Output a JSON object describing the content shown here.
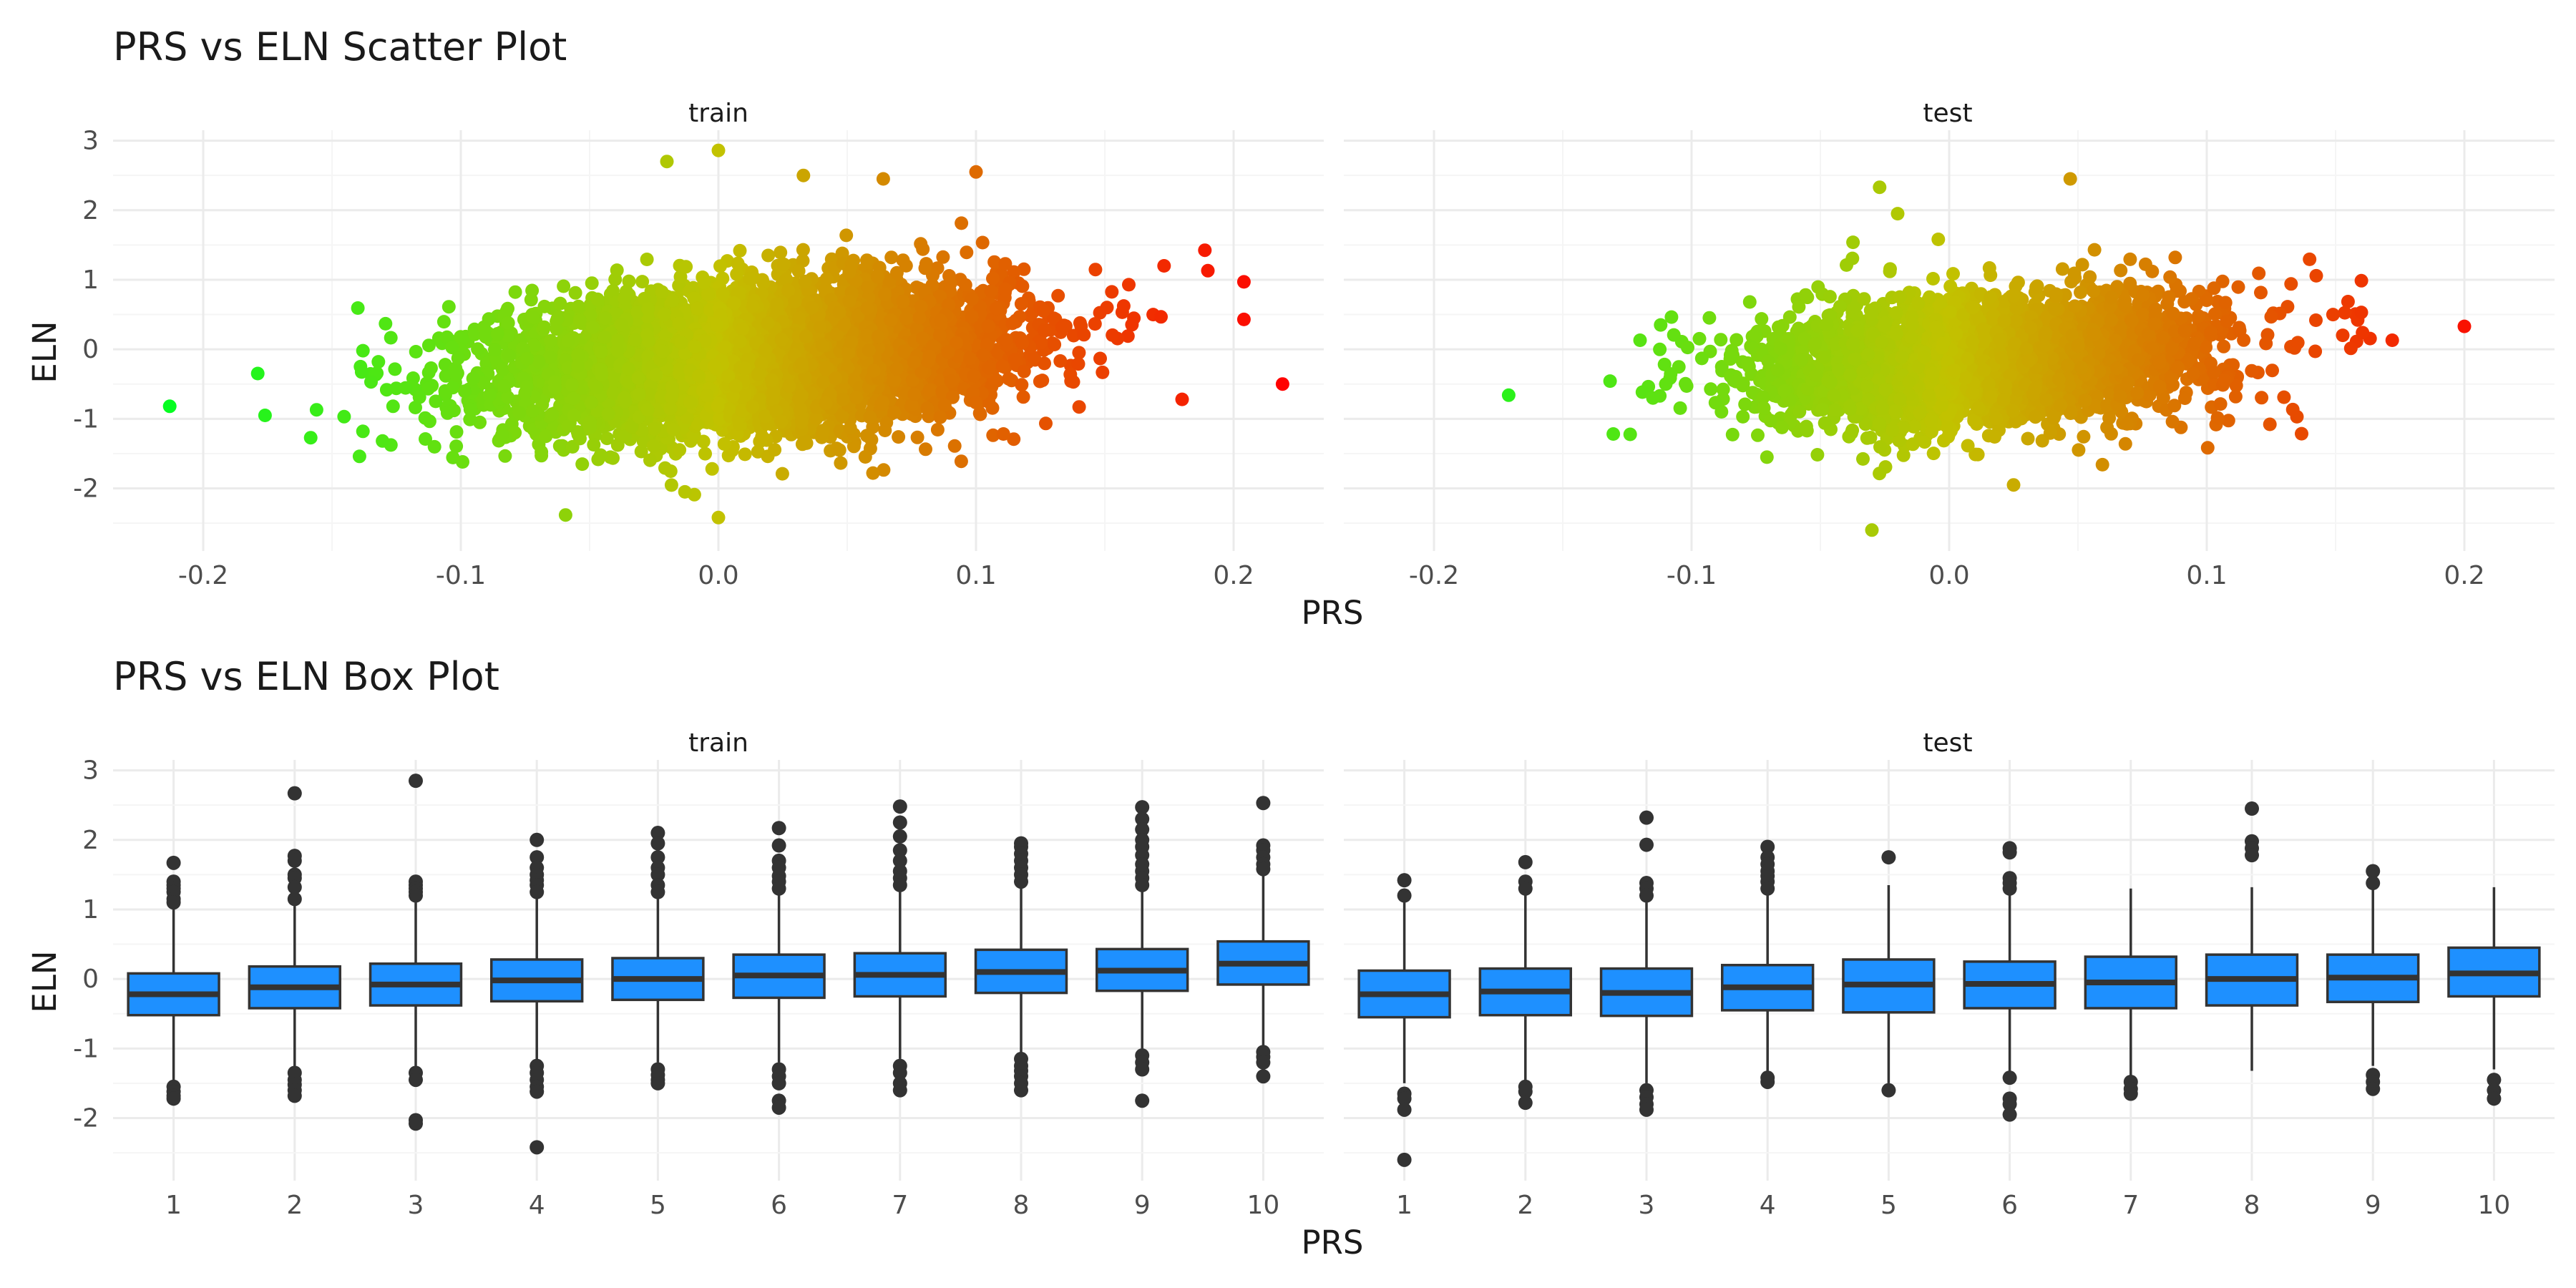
{
  "colors": {
    "grid_major": "#ebebeb",
    "grid_minor": "#f5f5f5",
    "box_fill": "#1E90FF",
    "box_line": "#333333",
    "point_low": "#00ff22",
    "point_mid": "#c2c200",
    "point_high": "#ff0000"
  },
  "chart_data": [
    {
      "type": "scatter",
      "title": "PRS vs ELN Scatter Plot",
      "xlabel": "PRS",
      "ylabel": "ELN",
      "xlim": [
        -0.235,
        0.235
      ],
      "ylim": [
        -2.9,
        3.15
      ],
      "xticks": [
        -0.2,
        -0.1,
        0.0,
        0.1,
        0.2
      ],
      "xtick_labels": [
        "-0.2",
        "-0.1",
        "0.0",
        "0.1",
        "0.2"
      ],
      "yticks": [
        -2,
        -1,
        0,
        1,
        2,
        3
      ],
      "ytick_labels": [
        "-2",
        "-1",
        "0",
        "1",
        "2",
        "3"
      ],
      "grid": true,
      "color_by": "x",
      "color_scale": [
        "#00ff22",
        "#c2c200",
        "#ff0000"
      ],
      "color_range": [
        -0.22,
        0.22
      ],
      "panels": [
        {
          "name": "train",
          "bulk": {
            "x_mean": 0.015,
            "x_sd": 0.048,
            "y_mean": -0.1,
            "y_sd": 0.5,
            "slope": 2.5,
            "n": 5500
          },
          "outliers": [
            [
              -0.213,
              -0.82
            ],
            [
              -0.176,
              -0.95
            ],
            [
              -0.156,
              -0.87
            ],
            [
              -0.138,
              -1.18
            ],
            [
              -0.138,
              -0.02
            ],
            [
              -0.132,
              -0.18
            ],
            [
              0.219,
              -0.5
            ],
            [
              0.204,
              0.97
            ],
            [
              0.204,
              0.43
            ],
            [
              0.19,
              1.13
            ],
            [
              0.18,
              -0.72
            ],
            [
              0.173,
              1.2
            ],
            [
              0.0,
              2.86
            ],
            [
              -0.02,
              2.7
            ],
            [
              0.033,
              2.5
            ],
            [
              0.1,
              2.55
            ],
            [
              0.064,
              2.45
            ],
            [
              0.0,
              -2.42
            ],
            [
              -0.013,
              -2.05
            ],
            [
              0.06,
              -1.78
            ]
          ]
        },
        {
          "name": "test",
          "bulk": {
            "x_mean": 0.015,
            "x_sd": 0.045,
            "y_mean": -0.15,
            "y_sd": 0.47,
            "slope": 2.3,
            "n": 2800
          },
          "outliers": [
            [
              -0.171,
              -0.66
            ],
            [
              -0.12,
              0.13
            ],
            [
              -0.112,
              0.35
            ],
            [
              -0.11,
              -0.5
            ],
            [
              -0.115,
              -0.7
            ],
            [
              0.2,
              0.33
            ],
            [
              0.172,
              0.13
            ],
            [
              0.16,
              0.53
            ],
            [
              0.149,
              0.5
            ],
            [
              0.135,
              -0.97
            ],
            [
              0.047,
              2.45
            ],
            [
              -0.027,
              2.33
            ],
            [
              -0.03,
              -2.6
            ],
            [
              0.025,
              -1.95
            ],
            [
              -0.02,
              1.95
            ]
          ]
        }
      ]
    },
    {
      "type": "box",
      "title": "PRS vs ELN Box Plot",
      "xlabel": "PRS",
      "ylabel": "ELN",
      "ylim": [
        -2.9,
        3.15
      ],
      "categories": [
        "1",
        "2",
        "3",
        "4",
        "5",
        "6",
        "7",
        "8",
        "9",
        "10"
      ],
      "yticks": [
        -2,
        -1,
        0,
        1,
        2,
        3
      ],
      "ytick_labels": [
        "-2",
        "-1",
        "0",
        "1",
        "2",
        "3"
      ],
      "grid": true,
      "panels": [
        {
          "name": "train",
          "boxes": [
            {
              "q1": -0.52,
              "median": -0.22,
              "q3": 0.08,
              "lo": -1.45,
              "hi": 1.0,
              "out": [
                1.67,
                1.4,
                1.35,
                1.3,
                1.25,
                1.15,
                1.1,
                -1.55,
                -1.62,
                -1.68,
                -1.72
              ]
            },
            {
              "q1": -0.42,
              "median": -0.12,
              "q3": 0.18,
              "lo": -1.25,
              "hi": 1.05,
              "out": [
                2.67,
                1.77,
                1.7,
                1.5,
                1.45,
                1.32,
                1.15,
                -1.35,
                -1.45,
                -1.52,
                -1.6,
                -1.68
              ]
            },
            {
              "q1": -0.38,
              "median": -0.08,
              "q3": 0.22,
              "lo": -1.25,
              "hi": 1.1,
              "out": [
                2.85,
                1.4,
                1.35,
                1.3,
                1.25,
                1.2,
                -1.35,
                -1.45,
                -2.03,
                -2.08
              ]
            },
            {
              "q1": -0.32,
              "median": -0.02,
              "q3": 0.28,
              "lo": -1.2,
              "hi": 1.2,
              "out": [
                2.0,
                1.75,
                1.6,
                1.5,
                1.42,
                1.35,
                1.25,
                -1.25,
                -1.35,
                -1.45,
                -1.55,
                -1.62,
                -2.42
              ]
            },
            {
              "q1": -0.3,
              "median": 0.0,
              "q3": 0.3,
              "lo": -1.2,
              "hi": 1.2,
              "out": [
                2.1,
                1.95,
                1.75,
                1.6,
                1.5,
                1.35,
                1.25,
                -1.3,
                -1.38,
                -1.45,
                -1.5
              ]
            },
            {
              "q1": -0.27,
              "median": 0.05,
              "q3": 0.35,
              "lo": -1.2,
              "hi": 1.25,
              "out": [
                2.17,
                1.92,
                1.7,
                1.6,
                1.48,
                1.4,
                1.3,
                -1.3,
                -1.4,
                -1.5,
                -1.75,
                -1.85
              ]
            },
            {
              "q1": -0.25,
              "median": 0.06,
              "q3": 0.37,
              "lo": -1.15,
              "hi": 1.25,
              "out": [
                2.48,
                2.25,
                2.05,
                1.85,
                1.7,
                1.55,
                1.45,
                1.35,
                -1.25,
                -1.35,
                -1.5,
                -1.6
              ]
            },
            {
              "q1": -0.2,
              "median": 0.1,
              "q3": 0.42,
              "lo": -1.05,
              "hi": 1.3,
              "out": [
                1.95,
                1.9,
                1.8,
                1.7,
                1.6,
                1.5,
                1.4,
                -1.15,
                -1.25,
                -1.32,
                -1.4,
                -1.5,
                -1.6
              ]
            },
            {
              "q1": -0.17,
              "median": 0.12,
              "q3": 0.43,
              "lo": -1.0,
              "hi": 1.3,
              "out": [
                2.47,
                2.3,
                2.15,
                2.0,
                1.9,
                1.78,
                1.65,
                1.55,
                1.45,
                1.35,
                -1.1,
                -1.2,
                -1.3,
                -1.75
              ]
            },
            {
              "q1": -0.08,
              "median": 0.22,
              "q3": 0.54,
              "lo": -0.95,
              "hi": 1.5,
              "out": [
                2.53,
                1.92,
                1.85,
                1.75,
                1.65,
                1.58,
                -1.05,
                -1.12,
                -1.2,
                -1.4
              ]
            }
          ]
        },
        {
          "name": "test",
          "boxes": [
            {
              "q1": -0.55,
              "median": -0.22,
              "q3": 0.12,
              "lo": -1.5,
              "hi": 1.1,
              "out": [
                1.42,
                1.2,
                -1.65,
                -1.72,
                -1.88,
                -2.6
              ]
            },
            {
              "q1": -0.52,
              "median": -0.18,
              "q3": 0.15,
              "lo": -1.5,
              "hi": 1.2,
              "out": [
                1.68,
                1.4,
                1.3,
                -1.55,
                -1.62,
                -1.78
              ]
            },
            {
              "q1": -0.53,
              "median": -0.2,
              "q3": 0.15,
              "lo": -1.5,
              "hi": 1.1,
              "out": [
                2.32,
                1.93,
                1.38,
                1.3,
                1.2,
                -1.6,
                -1.7,
                -1.8,
                -1.88
              ]
            },
            {
              "q1": -0.45,
              "median": -0.12,
              "q3": 0.2,
              "lo": -1.35,
              "hi": 1.2,
              "out": [
                1.9,
                1.75,
                1.65,
                1.55,
                1.48,
                1.4,
                1.3,
                -1.42,
                -1.48
              ]
            },
            {
              "q1": -0.48,
              "median": -0.08,
              "q3": 0.28,
              "lo": -1.5,
              "hi": 1.35,
              "out": [
                1.75,
                -1.6
              ]
            },
            {
              "q1": -0.42,
              "median": -0.07,
              "q3": 0.25,
              "lo": -1.35,
              "hi": 1.25,
              "out": [
                1.88,
                1.82,
                1.45,
                1.38,
                1.3,
                -1.42,
                -1.72,
                -1.8,
                -1.95
              ]
            },
            {
              "q1": -0.42,
              "median": -0.05,
              "q3": 0.32,
              "lo": -1.45,
              "hi": 1.3,
              "out": [
                -1.48,
                -1.58,
                -1.65
              ]
            },
            {
              "q1": -0.38,
              "median": 0.0,
              "q3": 0.35,
              "lo": -1.32,
              "hi": 1.32,
              "out": [
                2.45,
                1.98,
                1.88,
                1.78
              ]
            },
            {
              "q1": -0.33,
              "median": 0.02,
              "q3": 0.35,
              "lo": -1.25,
              "hi": 1.3,
              "out": [
                1.55,
                1.38,
                -1.38,
                -1.48,
                -1.58
              ]
            },
            {
              "q1": -0.25,
              "median": 0.08,
              "q3": 0.45,
              "lo": -1.3,
              "hi": 1.32,
              "out": [
                -1.45,
                -1.6,
                -1.72
              ]
            }
          ]
        }
      ]
    }
  ]
}
